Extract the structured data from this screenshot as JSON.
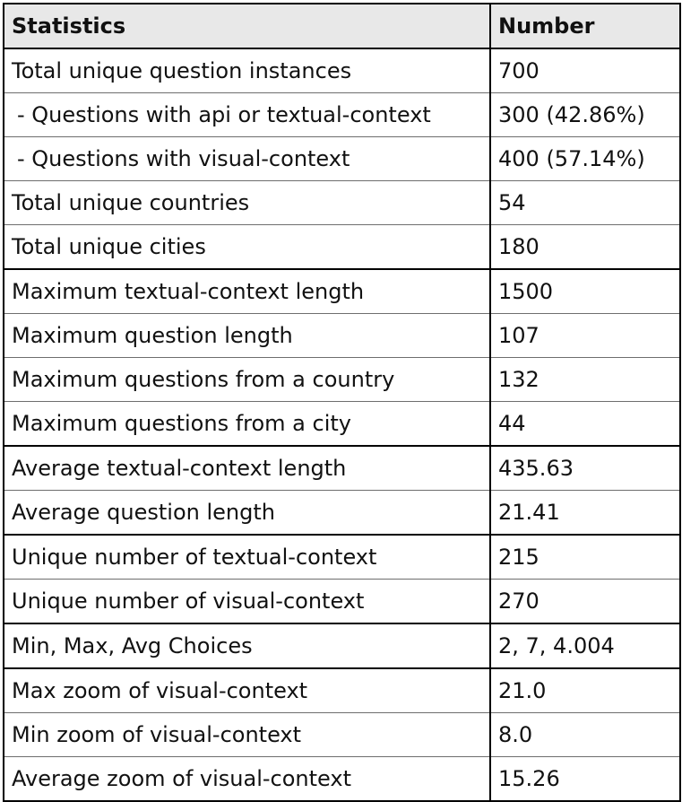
{
  "table": {
    "headers": [
      "Statistics",
      "Number"
    ],
    "rows": [
      {
        "label": "Total unique question instances",
        "value": "700"
      },
      {
        "label": "- Questions with api or textual-context",
        "value": "300 (42.86%)"
      },
      {
        "label": "- Questions with visual-context",
        "value": "400 (57.14%)"
      },
      {
        "label": "Total unique countries",
        "value": "54"
      },
      {
        "label": "Total unique cities",
        "value": "180"
      },
      {
        "label": "Maximum textual-context length",
        "value": "1500"
      },
      {
        "label": "Maximum question length",
        "value": "107"
      },
      {
        "label": "Maximum questions from a country",
        "value": "132"
      },
      {
        "label": "Maximum questions from a city",
        "value": "44"
      },
      {
        "label": "Average textual-context length",
        "value": "435.63"
      },
      {
        "label": "Average question length",
        "value": "21.41"
      },
      {
        "label": "Unique number of textual-context",
        "value": "215"
      },
      {
        "label": "Unique number of visual-context",
        "value": "270"
      },
      {
        "label": "Min, Max, Avg Choices",
        "value": "2, 7, 4.004"
      },
      {
        "label": "Max zoom of visual-context",
        "value": "21.0"
      },
      {
        "label": "Min zoom of visual-context",
        "value": "8.0"
      },
      {
        "label": "Average zoom of visual-context",
        "value": "15.26"
      }
    ]
  }
}
